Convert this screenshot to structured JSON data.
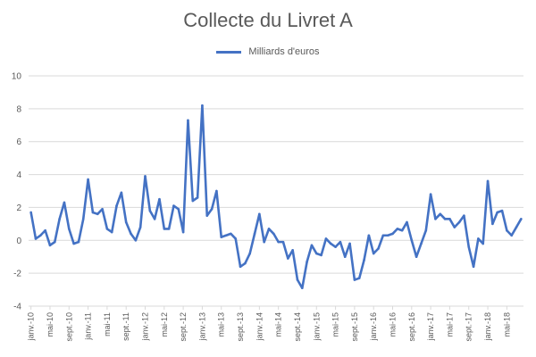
{
  "chart_data": {
    "type": "line",
    "title": "Collecte du Livret A",
    "xlabel": "",
    "ylabel": "",
    "ylim": [
      -4,
      10
    ],
    "yticks": [
      -4,
      -2,
      0,
      2,
      4,
      6,
      8,
      10
    ],
    "grid": true,
    "legend_position": "top",
    "line_color": "#4472c4",
    "x_tick_labels": [
      "janv.-10",
      "mai-10",
      "sept.-10",
      "janv.-11",
      "mai-11",
      "sept.-11",
      "janv.-12",
      "mai-12",
      "sept.-12",
      "janv.-13",
      "mai-13",
      "sept.-13",
      "janv.-14",
      "mai-14",
      "sept.-14",
      "janv.-15",
      "mai-15",
      "sept.-15",
      "janv.-16",
      "mai-16",
      "sept.-16",
      "janv.-17",
      "mai-17",
      "sept.-17",
      "janv.-18",
      "mai-18"
    ],
    "x_tick_every": 4,
    "series": [
      {
        "name": "Milliards d'euros",
        "values": [
          1.7,
          0.1,
          0.3,
          0.6,
          -0.3,
          -0.1,
          1.3,
          2.3,
          0.7,
          -0.2,
          -0.1,
          1.3,
          3.7,
          1.7,
          1.6,
          1.9,
          0.7,
          0.5,
          2.1,
          2.9,
          1.1,
          0.4,
          0.0,
          0.8,
          3.9,
          1.8,
          1.3,
          2.5,
          0.7,
          0.7,
          2.1,
          1.9,
          0.5,
          7.3,
          2.4,
          2.6,
          8.2,
          1.5,
          1.9,
          3.0,
          0.2,
          0.3,
          0.4,
          0.1,
          -1.6,
          -1.4,
          -0.8,
          0.4,
          1.6,
          -0.1,
          0.7,
          0.4,
          -0.1,
          -0.1,
          -1.1,
          -0.6,
          -2.4,
          -2.9,
          -1.3,
          -0.3,
          -0.8,
          -0.9,
          0.1,
          -0.2,
          -0.4,
          -0.1,
          -1.0,
          -0.2,
          -2.4,
          -2.3,
          -1.2,
          0.3,
          -0.8,
          -0.5,
          0.3,
          0.3,
          0.4,
          0.7,
          0.6,
          1.1,
          0.0,
          -1.0,
          -0.2,
          0.6,
          2.8,
          1.3,
          1.6,
          1.3,
          1.3,
          0.8,
          1.1,
          1.5,
          -0.4,
          -1.6,
          0.1,
          -0.2,
          3.6,
          1.0,
          1.7,
          1.8,
          0.6,
          0.3,
          0.8,
          1.3
        ]
      }
    ]
  }
}
